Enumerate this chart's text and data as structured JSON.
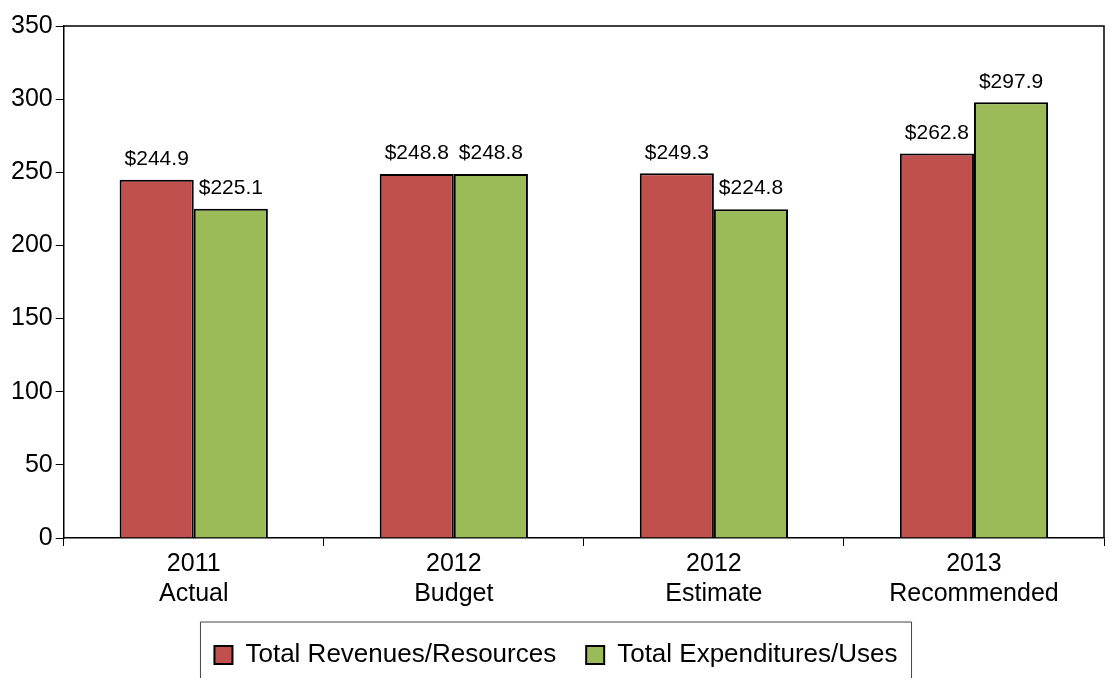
{
  "chart_data": {
    "type": "bar",
    "categories": [
      "2011\nActual",
      "2012\nBudget",
      "2012\nEstimate",
      "2013\nRecommended"
    ],
    "series": [
      {
        "name": "Total Revenues/Resources",
        "color": "#c0504d",
        "values": [
          244.9,
          248.8,
          249.3,
          262.8
        ],
        "value_labels": [
          "$244.9",
          "$248.8",
          "$249.3",
          "$262.8"
        ]
      },
      {
        "name": "Total Expenditures/Uses",
        "color": "#9bbb59",
        "values": [
          225.1,
          248.8,
          224.8,
          297.9
        ],
        "value_labels": [
          "$225.1",
          "$248.8",
          "$224.8",
          "$297.9"
        ]
      }
    ],
    "ylim": [
      0,
      350
    ],
    "yticks": [
      0,
      50,
      100,
      150,
      200,
      250,
      300,
      350
    ],
    "grid": false,
    "legend": "bottom"
  }
}
